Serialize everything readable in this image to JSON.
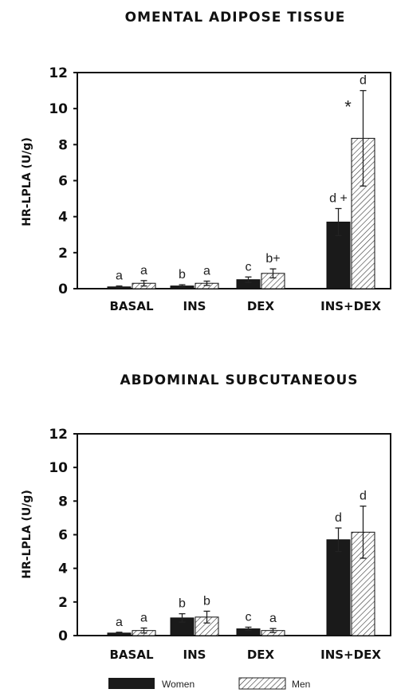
{
  "colors": {
    "women": "#1a1a1a",
    "men_hatch": "#333333",
    "axis": "#111111"
  },
  "legend": {
    "women": "Women",
    "men": "Men"
  },
  "chart_data": [
    {
      "type": "bar",
      "title": "OMENTAL ADIPOSE TISSUE",
      "ylabel": "HR-LPLA (U/g)",
      "ylim": [
        0,
        12
      ],
      "yticks": [
        "0",
        "2",
        "4",
        "6",
        "8",
        "10",
        "12"
      ],
      "categories": [
        "BASAL",
        "INS",
        "DEX",
        "INS+DEX"
      ],
      "series": [
        {
          "name": "Women",
          "values": [
            0.1,
            0.15,
            0.5,
            3.7
          ],
          "errors": [
            0.05,
            0.07,
            0.15,
            0.75
          ],
          "labels": [
            "a",
            "b",
            "c",
            "d +"
          ]
        },
        {
          "name": "Men",
          "values": [
            0.3,
            0.3,
            0.85,
            8.35
          ],
          "errors": [
            0.15,
            0.12,
            0.25,
            2.65
          ],
          "labels": [
            "a",
            "a",
            "b+",
            "d"
          ]
        }
      ],
      "extra_annotations": [
        {
          "category": "INS+DEX",
          "text": "*"
        }
      ]
    },
    {
      "type": "bar",
      "title": "ABDOMINAL SUBCUTANEOUS",
      "ylabel": "HR-LPLA (U/g)",
      "ylim": [
        0,
        12
      ],
      "yticks": [
        "0",
        "2",
        "4",
        "6",
        "8",
        "10",
        "12"
      ],
      "categories": [
        "BASAL",
        "INS",
        "DEX",
        "INS+DEX"
      ],
      "series": [
        {
          "name": "Women",
          "values": [
            0.15,
            1.05,
            0.4,
            5.7
          ],
          "errors": [
            0.05,
            0.25,
            0.1,
            0.7
          ],
          "labels": [
            "a",
            "b",
            "c",
            "d"
          ]
        },
        {
          "name": "Men",
          "values": [
            0.3,
            1.1,
            0.3,
            6.15
          ],
          "errors": [
            0.15,
            0.35,
            0.12,
            1.55
          ],
          "labels": [
            "a",
            "b",
            "a",
            "d"
          ]
        }
      ]
    }
  ]
}
